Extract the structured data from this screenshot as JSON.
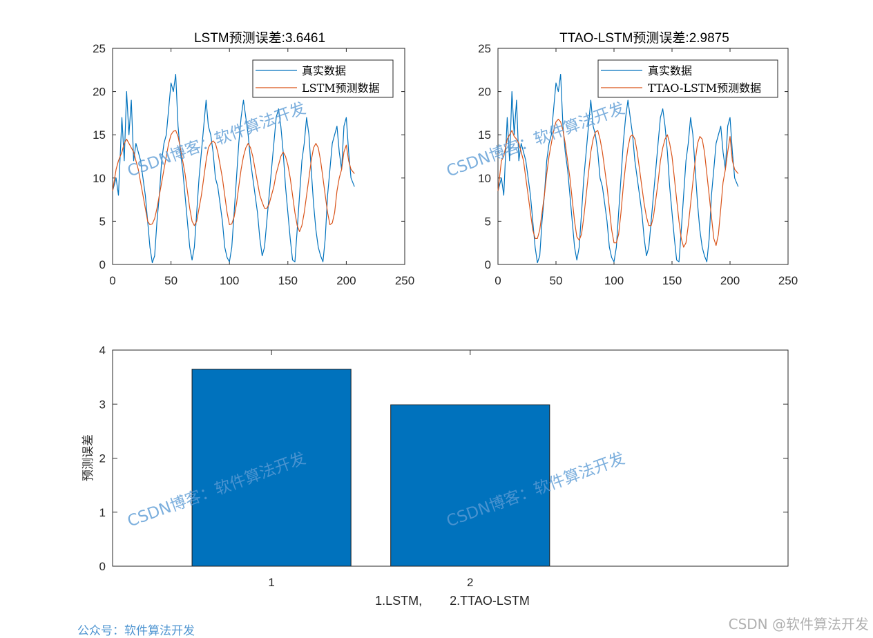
{
  "chart_data": [
    {
      "type": "line",
      "title": "LSTM预测误差:3.6461",
      "xlim": [
        0,
        250
      ],
      "ylim": [
        0,
        25
      ],
      "xticks": [
        "0",
        "50",
        "100",
        "150",
        "200",
        "250"
      ],
      "yticks": [
        "0",
        "5",
        "10",
        "15",
        "20",
        "25"
      ],
      "legend_position": "top-right",
      "series": [
        {
          "name": "真实数据",
          "color": "#0072BD",
          "x": [
            0,
            3,
            5,
            8,
            10,
            12,
            14,
            16,
            18,
            20,
            22,
            24,
            26,
            28,
            30,
            32,
            34,
            36,
            38,
            40,
            42,
            44,
            46,
            48,
            50,
            52,
            54,
            56,
            58,
            60,
            62,
            64,
            66,
            68,
            70,
            72,
            74,
            76,
            78,
            80,
            82,
            84,
            86,
            88,
            90,
            92,
            94,
            96,
            98,
            100,
            102,
            104,
            106,
            108,
            110,
            112,
            114,
            116,
            118,
            120,
            122,
            124,
            126,
            128,
            130,
            132,
            134,
            136,
            138,
            140,
            142,
            144,
            146,
            148,
            150,
            152,
            154,
            156,
            158,
            160,
            162,
            164,
            166,
            168,
            170,
            172,
            174,
            176,
            178,
            180,
            182,
            184,
            186,
            188,
            190,
            192,
            194,
            196,
            198,
            200,
            202,
            204,
            207
          ],
          "y": [
            8.5,
            10,
            8,
            17,
            12,
            20,
            15,
            19,
            12,
            14,
            13,
            12,
            10,
            8,
            5,
            2,
            0.2,
            1,
            5,
            8,
            12,
            14,
            15,
            18,
            21,
            20,
            22,
            16,
            13,
            11,
            8,
            5,
            2,
            0.5,
            2,
            6,
            10,
            13,
            16,
            19,
            16,
            15,
            13,
            10,
            9,
            7,
            5,
            2,
            0.8,
            0.3,
            2,
            6,
            10,
            14,
            17,
            19,
            17,
            15,
            12,
            10,
            8,
            6,
            3,
            1,
            2,
            5,
            8,
            11,
            14,
            17,
            18,
            16,
            13,
            9,
            6,
            3,
            0.5,
            0.3,
            4,
            8,
            12,
            14,
            17,
            15,
            11,
            7,
            4,
            2,
            1,
            0.3,
            3,
            8,
            11,
            14,
            15,
            16,
            13,
            11,
            16,
            17,
            13,
            10,
            9
          ]
        },
        {
          "name": "LSTM预测数据",
          "color": "#D95319",
          "x": [
            0,
            3,
            5,
            8,
            10,
            12,
            14,
            16,
            18,
            20,
            22,
            24,
            26,
            28,
            30,
            32,
            34,
            36,
            38,
            40,
            42,
            44,
            46,
            48,
            50,
            52,
            54,
            56,
            58,
            60,
            62,
            64,
            66,
            68,
            70,
            72,
            74,
            76,
            78,
            80,
            82,
            84,
            86,
            88,
            90,
            92,
            94,
            96,
            98,
            100,
            102,
            104,
            106,
            108,
            110,
            112,
            114,
            116,
            118,
            120,
            122,
            124,
            126,
            128,
            130,
            132,
            134,
            136,
            138,
            140,
            142,
            144,
            146,
            148,
            150,
            152,
            154,
            156,
            158,
            160,
            162,
            164,
            166,
            168,
            170,
            172,
            174,
            176,
            178,
            180,
            182,
            184,
            186,
            188,
            190,
            192,
            194,
            196,
            198,
            200,
            202,
            204,
            207
          ],
          "y": [
            8.5,
            11,
            12,
            13,
            14,
            14.5,
            14,
            13.5,
            13,
            12,
            11,
            9.5,
            8,
            6.5,
            5,
            4.6,
            4.7,
            5.3,
            6.5,
            8,
            9.5,
            11,
            12.5,
            14,
            15,
            15.4,
            15.5,
            14.8,
            13.5,
            12,
            10.5,
            8.5,
            6.5,
            5,
            4.5,
            5,
            6.5,
            8,
            10,
            12,
            13.5,
            14,
            14.3,
            14,
            13,
            11.5,
            10,
            8,
            6,
            4.6,
            4.7,
            5.5,
            7,
            9,
            11,
            12.5,
            13.5,
            14,
            13.5,
            12.5,
            11,
            9.5,
            8,
            7.2,
            6.5,
            6.5,
            7,
            8,
            9,
            10.5,
            11.5,
            12.5,
            13,
            12.5,
            11.5,
            10,
            8,
            6,
            4.5,
            3.8,
            4.5,
            6,
            8,
            10,
            12,
            13.5,
            14,
            13.5,
            12,
            10,
            8,
            6,
            4.6,
            4.8,
            6,
            8.5,
            10,
            11,
            13,
            13.8,
            12,
            11,
            10.5
          ]
        }
      ]
    },
    {
      "type": "line",
      "title": "TTAO-LSTM预测误差:2.9875",
      "xlim": [
        0,
        250
      ],
      "ylim": [
        0,
        25
      ],
      "xticks": [
        "0",
        "50",
        "100",
        "150",
        "200",
        "250"
      ],
      "yticks": [
        "0",
        "5",
        "10",
        "15",
        "20",
        "25"
      ],
      "legend_position": "top-right",
      "series": [
        {
          "name": "真实数据",
          "color": "#0072BD",
          "x": [
            0,
            3,
            5,
            8,
            10,
            12,
            14,
            16,
            18,
            20,
            22,
            24,
            26,
            28,
            30,
            32,
            34,
            36,
            38,
            40,
            42,
            44,
            46,
            48,
            50,
            52,
            54,
            56,
            58,
            60,
            62,
            64,
            66,
            68,
            70,
            72,
            74,
            76,
            78,
            80,
            82,
            84,
            86,
            88,
            90,
            92,
            94,
            96,
            98,
            100,
            102,
            104,
            106,
            108,
            110,
            112,
            114,
            116,
            118,
            120,
            122,
            124,
            126,
            128,
            130,
            132,
            134,
            136,
            138,
            140,
            142,
            144,
            146,
            148,
            150,
            152,
            154,
            156,
            158,
            160,
            162,
            164,
            166,
            168,
            170,
            172,
            174,
            176,
            178,
            180,
            182,
            184,
            186,
            188,
            190,
            192,
            194,
            196,
            198,
            200,
            202,
            204,
            207
          ],
          "y": [
            8.5,
            10,
            8,
            17,
            12,
            20,
            15,
            19,
            12,
            14,
            13,
            12,
            10,
            8,
            5,
            2,
            0.2,
            1,
            5,
            8,
            12,
            14,
            15,
            18,
            21,
            20,
            22,
            16,
            13,
            11,
            8,
            5,
            2,
            0.5,
            2,
            6,
            10,
            13,
            16,
            19,
            16,
            15,
            13,
            10,
            9,
            7,
            5,
            2,
            0.8,
            0.3,
            2,
            6,
            10,
            14,
            17,
            19,
            17,
            15,
            12,
            10,
            8,
            6,
            3,
            1,
            2,
            5,
            8,
            11,
            14,
            17,
            18,
            16,
            13,
            9,
            6,
            3,
            0.5,
            0.3,
            4,
            8,
            12,
            14,
            17,
            15,
            11,
            7,
            4,
            2,
            1,
            0.3,
            3,
            8,
            11,
            14,
            15,
            16,
            13,
            11,
            16,
            17,
            13,
            10,
            9
          ]
        },
        {
          "name": "TTAO-LSTM预测数据",
          "color": "#D95319",
          "x": [
            0,
            3,
            5,
            8,
            10,
            12,
            14,
            16,
            18,
            20,
            22,
            24,
            26,
            28,
            30,
            32,
            34,
            36,
            38,
            40,
            42,
            44,
            46,
            48,
            50,
            52,
            54,
            56,
            58,
            60,
            62,
            64,
            66,
            68,
            70,
            72,
            74,
            76,
            78,
            80,
            82,
            84,
            86,
            88,
            90,
            92,
            94,
            96,
            98,
            100,
            102,
            104,
            106,
            108,
            110,
            112,
            114,
            116,
            118,
            120,
            122,
            124,
            126,
            128,
            130,
            132,
            134,
            136,
            138,
            140,
            142,
            144,
            146,
            148,
            150,
            152,
            154,
            156,
            158,
            160,
            162,
            164,
            166,
            168,
            170,
            172,
            174,
            176,
            178,
            180,
            182,
            184,
            186,
            188,
            190,
            192,
            194,
            196,
            198,
            200,
            202,
            204,
            207
          ],
          "y": [
            8.5,
            12,
            12.5,
            14.5,
            15,
            15.5,
            14.8,
            14.5,
            14,
            13,
            12,
            10,
            8,
            6,
            4,
            3,
            3,
            4,
            6,
            8,
            10.5,
            12.5,
            14,
            15.5,
            16.5,
            16.8,
            16.5,
            15.5,
            14,
            12,
            10,
            7.5,
            5,
            3.2,
            2.8,
            3.5,
            5.5,
            8,
            10.5,
            13,
            14.5,
            15.3,
            15.5,
            14.5,
            13,
            11,
            9,
            6.5,
            4,
            2.5,
            2.5,
            3.5,
            6,
            9,
            11.5,
            13.5,
            14.8,
            15,
            14.5,
            13,
            11,
            9,
            7,
            5.5,
            4.5,
            4.5,
            5.5,
            7.5,
            9.5,
            12,
            13.5,
            14.5,
            15,
            14,
            12.5,
            10,
            7.5,
            5,
            3,
            2,
            2.5,
            4.5,
            7,
            9.5,
            12,
            14,
            14.8,
            14.5,
            13,
            10.5,
            8,
            5.5,
            3,
            2.2,
            3.5,
            6.5,
            9.5,
            11,
            13,
            14.8,
            12,
            11,
            10.5
          ]
        }
      ]
    },
    {
      "type": "bar",
      "categories": [
        "1",
        "2"
      ],
      "values": [
        3.6461,
        2.9875
      ],
      "color": "#0072BD",
      "xlim": [
        0.2,
        3.6
      ],
      "ylim": [
        0,
        4
      ],
      "yticks": [
        "0",
        "1",
        "2",
        "3",
        "4"
      ],
      "xlabel": "1.LSTM,        2.TTAO-LSTM",
      "ylabel": "预测误差"
    }
  ],
  "watermarks": [
    "CSDN博客：软件算法开发",
    "CSDN博客：软件算法开发",
    "CSDN博客：软件算法开发",
    "CSDN博客：软件算法开发"
  ],
  "footer": {
    "left": "公众号：软件算法开发",
    "right": "CSDN @软件算法开发"
  }
}
